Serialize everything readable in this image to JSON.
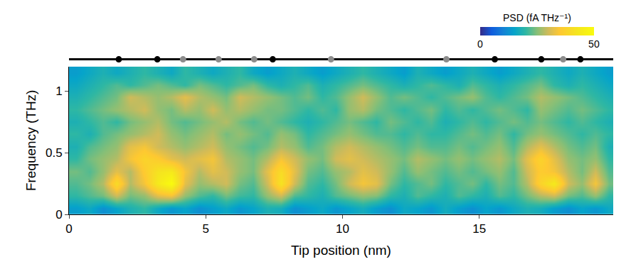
{
  "chart_data": {
    "type": "heatmap",
    "x_label": "Tip position (nm)",
    "y_label": "Frequency (THz)",
    "x": [
      0.25,
      0.75,
      1.25,
      1.75,
      2.25,
      2.75,
      3.25,
      3.75,
      4.25,
      4.75,
      5.25,
      5.75,
      6.25,
      6.75,
      7.25,
      7.75,
      8.25,
      8.75,
      9.25,
      9.75,
      10.25,
      10.75,
      11.25,
      11.75,
      12.25,
      12.75,
      13.25,
      13.75,
      14.25,
      14.75,
      15.25,
      15.75,
      16.25,
      16.75,
      17.25,
      17.75,
      18.25,
      18.75,
      19.25,
      19.75
    ],
    "y": [
      0.05,
      0.15,
      0.25,
      0.35,
      0.45,
      0.55,
      0.65,
      0.75,
      0.85,
      0.95,
      1.05,
      1.15
    ],
    "z": [
      [
        14,
        16,
        12,
        15,
        18,
        20,
        16,
        13,
        15,
        12,
        14,
        16,
        13,
        15,
        18,
        17,
        12,
        14,
        16,
        13,
        15,
        17,
        14,
        12,
        16,
        15,
        13,
        17,
        14,
        12,
        15,
        13,
        16,
        18,
        17,
        14,
        12,
        15,
        13,
        16
      ],
      [
        20,
        22,
        24,
        30,
        24,
        26,
        32,
        34,
        26,
        22,
        20,
        24,
        21,
        20,
        26,
        30,
        22,
        20,
        18,
        22,
        24,
        26,
        25,
        20,
        18,
        22,
        20,
        18,
        22,
        20,
        18,
        22,
        20,
        24,
        28,
        30,
        24,
        22,
        26,
        20
      ],
      [
        22,
        24,
        28,
        40,
        28,
        34,
        44,
        50,
        32,
        26,
        28,
        30,
        24,
        22,
        30,
        42,
        30,
        22,
        20,
        24,
        30,
        34,
        32,
        24,
        20,
        22,
        24,
        20,
        22,
        24,
        20,
        24,
        22,
        28,
        38,
        44,
        30,
        26,
        34,
        24
      ],
      [
        24,
        22,
        26,
        32,
        28,
        36,
        42,
        44,
        34,
        28,
        32,
        30,
        26,
        24,
        32,
        40,
        32,
        24,
        22,
        26,
        28,
        32,
        30,
        26,
        22,
        26,
        24,
        22,
        24,
        22,
        24,
        26,
        22,
        30,
        36,
        34,
        28,
        24,
        30,
        22
      ],
      [
        20,
        24,
        26,
        28,
        34,
        38,
        36,
        32,
        30,
        32,
        34,
        28,
        26,
        24,
        28,
        34,
        30,
        26,
        24,
        30,
        32,
        30,
        28,
        26,
        24,
        28,
        26,
        24,
        26,
        24,
        26,
        28,
        24,
        32,
        38,
        32,
        26,
        24,
        26,
        20
      ],
      [
        18,
        22,
        24,
        26,
        32,
        34,
        30,
        28,
        26,
        28,
        30,
        26,
        24,
        22,
        24,
        28,
        26,
        22,
        24,
        28,
        30,
        28,
        26,
        24,
        22,
        24,
        22,
        22,
        24,
        22,
        24,
        26,
        22,
        28,
        32,
        28,
        24,
        22,
        24,
        18
      ],
      [
        20,
        18,
        22,
        24,
        26,
        28,
        30,
        26,
        24,
        26,
        28,
        24,
        26,
        24,
        22,
        26,
        24,
        20,
        22,
        24,
        26,
        24,
        22,
        22,
        20,
        22,
        20,
        20,
        22,
        24,
        22,
        24,
        20,
        24,
        26,
        24,
        22,
        20,
        22,
        20
      ],
      [
        18,
        20,
        22,
        20,
        24,
        26,
        28,
        24,
        22,
        24,
        26,
        28,
        24,
        22,
        24,
        22,
        20,
        18,
        20,
        22,
        24,
        22,
        20,
        24,
        22,
        20,
        22,
        18,
        20,
        22,
        20,
        22,
        24,
        22,
        24,
        22,
        20,
        22,
        20,
        18
      ],
      [
        20,
        22,
        24,
        26,
        28,
        30,
        26,
        24,
        28,
        26,
        30,
        26,
        28,
        26,
        24,
        24,
        22,
        20,
        22,
        20,
        26,
        28,
        24,
        22,
        20,
        22,
        24,
        20,
        22,
        20,
        22,
        24,
        22,
        20,
        26,
        24,
        22,
        24,
        22,
        20
      ],
      [
        18,
        20,
        22,
        24,
        30,
        28,
        26,
        28,
        32,
        28,
        26,
        24,
        30,
        28,
        26,
        24,
        22,
        24,
        20,
        22,
        26,
        30,
        26,
        22,
        24,
        22,
        20,
        22,
        24,
        26,
        22,
        20,
        22,
        24,
        28,
        26,
        24,
        22,
        20,
        18
      ],
      [
        16,
        18,
        20,
        22,
        20,
        22,
        24,
        22,
        20,
        24,
        22,
        20,
        22,
        24,
        20,
        18,
        20,
        22,
        18,
        20,
        22,
        24,
        22,
        20,
        18,
        20,
        22,
        20,
        18,
        22,
        20,
        18,
        20,
        22,
        24,
        20,
        18,
        20,
        18,
        16
      ],
      [
        14,
        16,
        18,
        16,
        18,
        20,
        18,
        16,
        20,
        18,
        16,
        18,
        20,
        16,
        14,
        16,
        18,
        16,
        14,
        16,
        18,
        20,
        18,
        16,
        14,
        18,
        16,
        14,
        16,
        18,
        16,
        14,
        16,
        18,
        20,
        18,
        16,
        18,
        16,
        14
      ]
    ],
    "xlim": [
      0,
      19.9
    ],
    "xticks": [
      0,
      5,
      10,
      15
    ],
    "ylim": [
      0,
      1.2
    ],
    "yticks": [
      0,
      0.5,
      1
    ],
    "colorbar": {
      "title": "PSD (fA THz⁻¹)",
      "range": [
        0,
        50
      ],
      "ticks": [
        0,
        50
      ]
    },
    "sites": [
      {
        "color": "#000000",
        "x": [
          1.82,
          3.23,
          7.45,
          15.57,
          17.27,
          18.7
        ]
      },
      {
        "color": "#8c8c8c",
        "x": [
          4.17,
          5.47,
          6.77,
          9.58,
          13.8,
          18.07
        ]
      }
    ]
  }
}
